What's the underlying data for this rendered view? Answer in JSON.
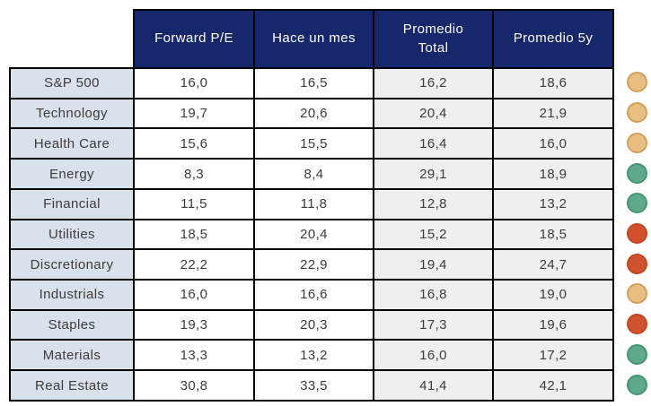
{
  "table": {
    "columns": [
      "Forward P/E",
      "Hace un mes",
      "Promedio\nTotal",
      "Promedio 5y"
    ],
    "rows": [
      {
        "label": "S&P 500",
        "values": [
          "16,0",
          "16,5",
          "16,2",
          "18,6"
        ],
        "status": "yellow"
      },
      {
        "label": "Technology",
        "values": [
          "19,7",
          "20,6",
          "20,4",
          "21,9"
        ],
        "status": "yellow"
      },
      {
        "label": "Health Care",
        "values": [
          "15,6",
          "15,5",
          "16,4",
          "16,0"
        ],
        "status": "yellow"
      },
      {
        "label": "Energy",
        "values": [
          "8,3",
          "8,4",
          "29,1",
          "18,9"
        ],
        "status": "green"
      },
      {
        "label": "Financial",
        "values": [
          "11,5",
          "11,8",
          "12,8",
          "13,2"
        ],
        "status": "green"
      },
      {
        "label": "Utilities",
        "values": [
          "18,5",
          "20,4",
          "15,2",
          "18,5"
        ],
        "status": "red"
      },
      {
        "label": "Discretionary",
        "values": [
          "22,2",
          "22,9",
          "19,4",
          "24,7"
        ],
        "status": "red"
      },
      {
        "label": "Industrials",
        "values": [
          "16,0",
          "16,6",
          "16,8",
          "19,0"
        ],
        "status": "yellow"
      },
      {
        "label": "Staples",
        "values": [
          "19,3",
          "20,3",
          "17,3",
          "19,6"
        ],
        "status": "red"
      },
      {
        "label": "Materials",
        "values": [
          "13,3",
          "13,2",
          "16,0",
          "17,2"
        ],
        "status": "green"
      },
      {
        "label": "Real Estate",
        "values": [
          "30,8",
          "33,5",
          "41,4",
          "42,1"
        ],
        "status": "green"
      }
    ]
  },
  "colors": {
    "header_bg": "#16276B",
    "label_bg": "#D9E1EA",
    "data_bg_white": "#FFFFFF",
    "data_bg_gray": "#EFEFEF",
    "border": "#000000",
    "status": {
      "yellow": {
        "fill": "#E9BE81",
        "border": "#D0A05C"
      },
      "green": {
        "fill": "#5EA98A",
        "border": "#459473"
      },
      "red": {
        "fill": "#D1512D",
        "border": "#C04627"
      }
    }
  },
  "chart_data": {
    "type": "table",
    "title": "",
    "columns": [
      "",
      "Forward P/E",
      "Hace un mes",
      "Promedio Total",
      "Promedio 5y",
      "status"
    ],
    "rows": [
      [
        "S&P 500",
        16.0,
        16.5,
        16.2,
        18.6,
        "yellow"
      ],
      [
        "Technology",
        19.7,
        20.6,
        20.4,
        21.9,
        "yellow"
      ],
      [
        "Health Care",
        15.6,
        15.5,
        16.4,
        16.0,
        "yellow"
      ],
      [
        "Energy",
        8.3,
        8.4,
        29.1,
        18.9,
        "green"
      ],
      [
        "Financial",
        11.5,
        11.8,
        12.8,
        13.2,
        "green"
      ],
      [
        "Utilities",
        18.5,
        20.4,
        15.2,
        18.5,
        "red"
      ],
      [
        "Discretionary",
        22.2,
        22.9,
        19.4,
        24.7,
        "red"
      ],
      [
        "Industrials",
        16.0,
        16.6,
        16.8,
        19.0,
        "yellow"
      ],
      [
        "Staples",
        19.3,
        20.3,
        17.3,
        19.6,
        "red"
      ],
      [
        "Materials",
        13.3,
        13.2,
        16.0,
        17.2,
        "green"
      ],
      [
        "Real Estate",
        30.8,
        33.5,
        41.4,
        42.1,
        "green"
      ]
    ],
    "notes": "Decimal comma formatting; colored status dot at right of each row"
  }
}
